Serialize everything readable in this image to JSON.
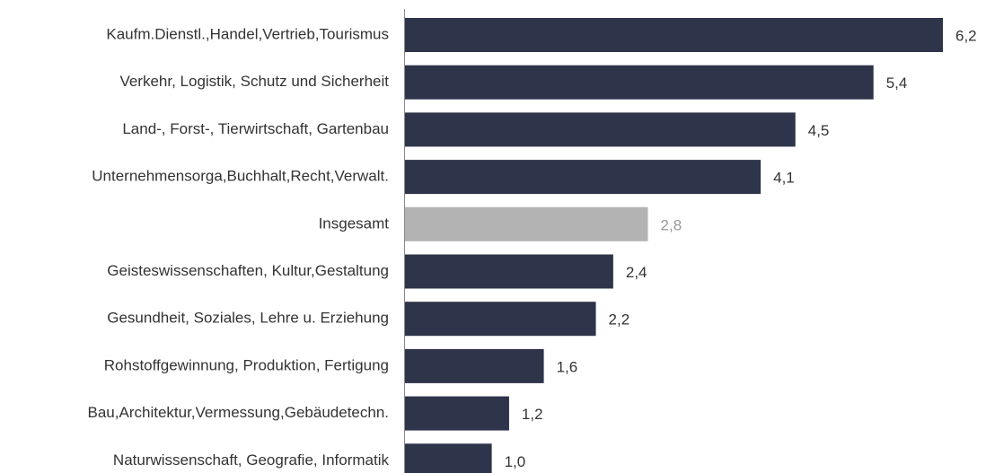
{
  "chart_data": {
    "type": "bar",
    "orientation": "horizontal",
    "categories": [
      "Kaufm.Dienstl.,Handel,Vertrieb,Tourismus",
      "Verkehr, Logistik, Schutz und Sicherheit",
      "Land-, Forst-, Tierwirtschaft, Gartenbau",
      "Unternehmensorga,Buchhalt,Recht,Verwalt.",
      "Insgesamt",
      "Geisteswissenschaften, Kultur,Gestaltung",
      "Gesundheit, Soziales, Lehre u. Erziehung",
      "Rohstoffgewinnung, Produktion, Fertigung",
      "Bau,Architektur,Vermessung,Gebäudetechn.",
      "Naturwissenschaft, Geografie, Informatik"
    ],
    "values": [
      6.2,
      5.4,
      4.5,
      4.1,
      2.8,
      2.4,
      2.2,
      1.6,
      1.2,
      1.0
    ],
    "value_labels": [
      "6,2",
      "5,4",
      "4,5",
      "4,1",
      "2,8",
      "2,4",
      "2,2",
      "1,6",
      "1,2",
      "1,0"
    ],
    "colors": [
      "#2e3449",
      "#2e3449",
      "#2e3449",
      "#2e3449",
      "#b3b3b3",
      "#2e3449",
      "#2e3449",
      "#2e3449",
      "#2e3449",
      "#2e3449"
    ]
  }
}
